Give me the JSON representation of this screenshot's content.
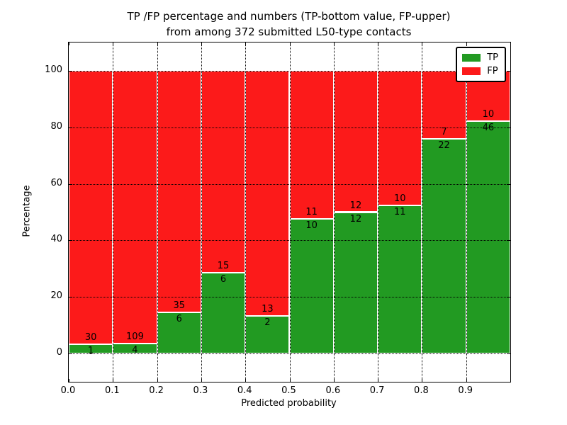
{
  "chart_data": {
    "type": "bar",
    "stacked": true,
    "normalized": "each bin stacked to 100%",
    "title_line1": "TP /FP percentage and numbers (TP-bottom value, FP-upper)",
    "title_line2": "from among 372 submitted L50-type contacts",
    "xlabel": "Predicted probability",
    "ylabel": "Percentage",
    "total_contacts": 372,
    "x_tick_labels": [
      "0.0",
      "0.1",
      "0.2",
      "0.3",
      "0.4",
      "0.5",
      "0.6",
      "0.7",
      "0.8",
      "0.9"
    ],
    "y_tick_values": [
      0,
      20,
      40,
      60,
      80,
      100
    ],
    "xlim": [
      0.0,
      1.0
    ],
    "ylim": [
      -10,
      110
    ],
    "bin_width": 0.1,
    "grid": "dotted black, on",
    "categories": [
      "0.0-0.1",
      "0.1-0.2",
      "0.2-0.3",
      "0.3-0.4",
      "0.4-0.5",
      "0.5-0.6",
      "0.6-0.7",
      "0.7-0.8",
      "0.8-0.9",
      "0.9-1.0"
    ],
    "series": [
      {
        "name": "TP",
        "color": "#229a22",
        "position": "bottom",
        "values": [
          1,
          4,
          6,
          6,
          2,
          10,
          12,
          11,
          22,
          46
        ]
      },
      {
        "name": "FP",
        "color": "#fc1a1a",
        "position": "top",
        "values": [
          30,
          109,
          35,
          15,
          13,
          11,
          12,
          10,
          7,
          10
        ]
      }
    ],
    "legend": {
      "position": "upper right",
      "entries": [
        {
          "label": "TP",
          "color": "#229a22"
        },
        {
          "label": "FP",
          "color": "#fc1a1a"
        }
      ]
    }
  }
}
